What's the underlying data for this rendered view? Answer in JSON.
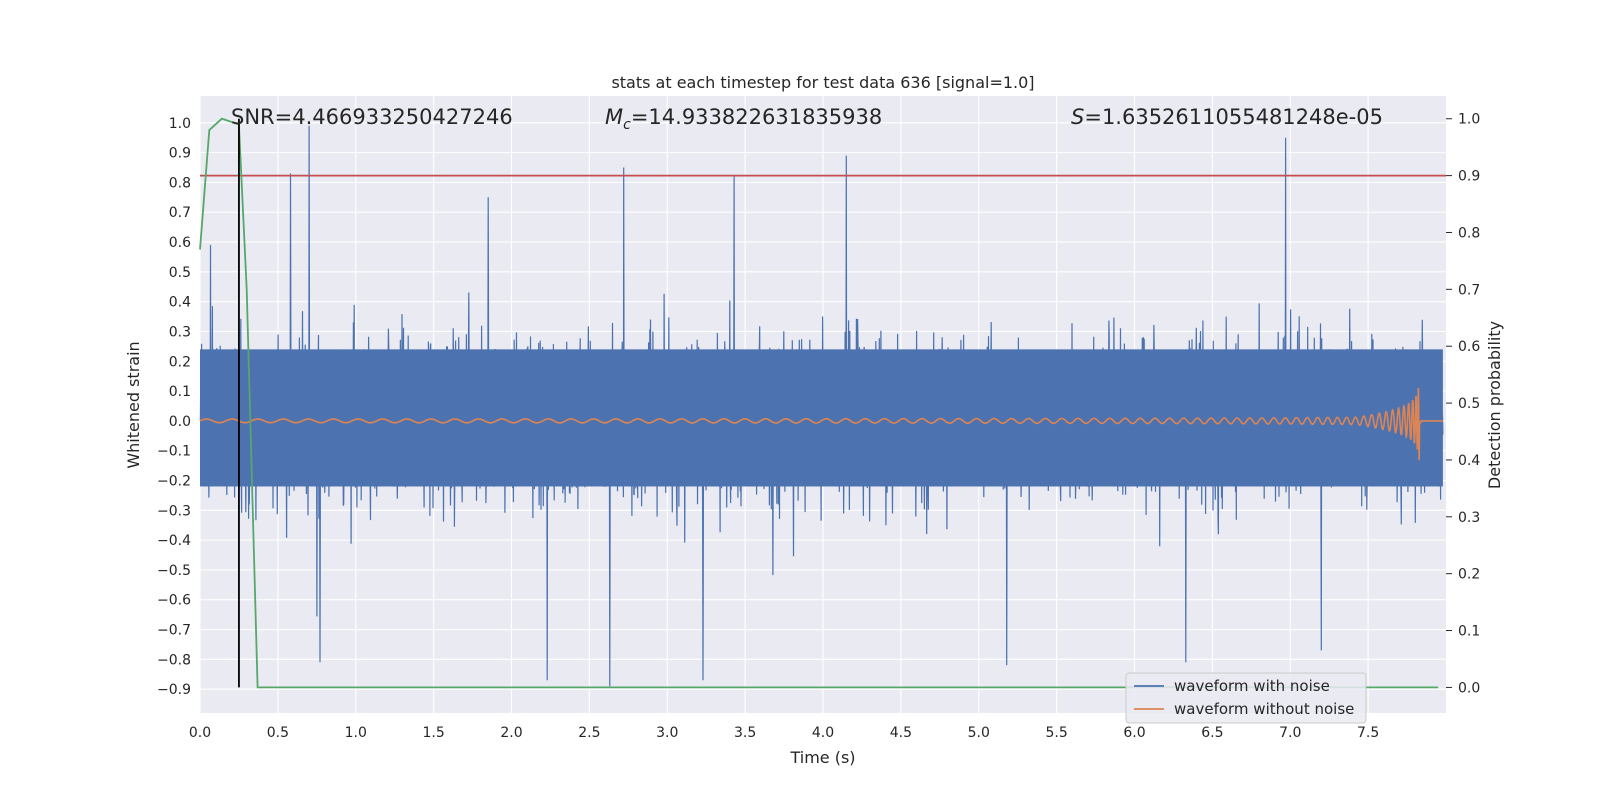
{
  "chart_data": {
    "type": "line",
    "title": "stats at each timestep for test data 636 [signal=1.0]",
    "xlabel": "Time (s)",
    "ylabel": "Whitened strain",
    "y2label": "Detection probability",
    "xlim": [
      0.0,
      8.0
    ],
    "ylim": [
      -0.98,
      1.09
    ],
    "y2lim": [
      -0.045,
      1.04
    ],
    "xticks": [
      "0.0",
      "0.5",
      "1.0",
      "1.5",
      "2.0",
      "2.5",
      "3.0",
      "3.5",
      "4.0",
      "4.5",
      "5.0",
      "5.5",
      "6.0",
      "6.5",
      "7.0",
      "7.5"
    ],
    "yticks": [
      "−0.9",
      "−0.8",
      "−0.7",
      "−0.6",
      "−0.5",
      "−0.4",
      "−0.3",
      "−0.2",
      "−0.1",
      "0.0",
      "0.1",
      "0.2",
      "0.3",
      "0.4",
      "0.5",
      "0.6",
      "0.7",
      "0.8",
      "0.9",
      "1.0"
    ],
    "y2ticks": [
      "0.0",
      "0.1",
      "0.2",
      "0.3",
      "0.4",
      "0.5",
      "0.6",
      "0.7",
      "0.8",
      "0.9",
      "1.0"
    ],
    "grid": true,
    "legend": {
      "location": "bottom-right",
      "entries": [
        "waveform with noise",
        "waveform without noise"
      ]
    },
    "annotations": {
      "snr": "SNR=4.466933250427246",
      "mc_symbol": "M",
      "mc_sub": "c",
      "mc_value": "=14.933822631835938",
      "s_symbol": "S",
      "s_value": "=1.6352611055481248e-05"
    },
    "series": [
      {
        "name": "waveform with noise",
        "color": "#4c72b0",
        "description": "noise band approx ±0.45 with peaks up to ~0.99 and troughs to ~-0.9 across 0–8 s"
      },
      {
        "name": "waveform without noise",
        "color": "#dd8452",
        "chirp": {
          "t_start": 0.0,
          "t_merge": 7.83,
          "peak_amplitude": 0.28
        }
      }
    ],
    "probability_curve": {
      "color": "#55a868",
      "points": [
        [
          0.0,
          0.77
        ],
        [
          0.06,
          0.98
        ],
        [
          0.14,
          1.0
        ],
        [
          0.25,
          0.99
        ],
        [
          0.3,
          0.7
        ],
        [
          0.37,
          0.0
        ],
        [
          7.95,
          0.0
        ]
      ]
    },
    "threshold_line": {
      "value": 0.9,
      "color": "#c44e52"
    },
    "marker_line": {
      "x": 0.25,
      "color": "#000000"
    }
  }
}
